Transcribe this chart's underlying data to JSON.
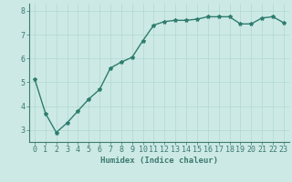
{
  "x": [
    0,
    1,
    2,
    3,
    4,
    5,
    6,
    7,
    8,
    9,
    10,
    11,
    12,
    13,
    14,
    15,
    16,
    17,
    18,
    19,
    20,
    21,
    22,
    23
  ],
  "y": [
    5.15,
    3.7,
    2.9,
    3.3,
    3.8,
    4.3,
    4.7,
    5.6,
    5.85,
    6.05,
    6.75,
    7.4,
    7.55,
    7.6,
    7.6,
    7.65,
    7.75,
    7.75,
    7.75,
    7.45,
    7.45,
    7.7,
    7.75,
    7.5
  ],
  "line_color": "#2e7d6e",
  "marker": "*",
  "marker_size": 3,
  "background_color": "#cce9e5",
  "grid_color": "#b0d8d2",
  "xlabel": "Humidex (Indice chaleur)",
  "xlim": [
    -0.5,
    23.5
  ],
  "ylim": [
    2.5,
    8.3
  ],
  "yticks": [
    3,
    4,
    5,
    6,
    7,
    8
  ],
  "xticks": [
    0,
    1,
    2,
    3,
    4,
    5,
    6,
    7,
    8,
    9,
    10,
    11,
    12,
    13,
    14,
    15,
    16,
    17,
    18,
    19,
    20,
    21,
    22,
    23
  ],
  "xlabel_fontsize": 6.5,
  "tick_fontsize": 6,
  "line_width": 1.0
}
